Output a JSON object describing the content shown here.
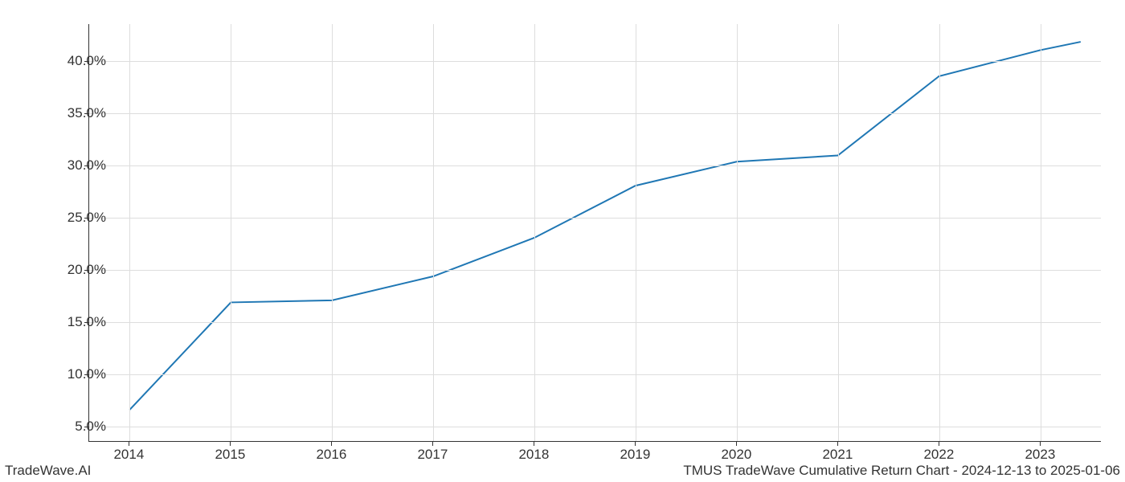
{
  "chart": {
    "type": "line",
    "x_values": [
      2014,
      2015,
      2016,
      2017,
      2018,
      2019,
      2020,
      2021,
      2022,
      2023,
      2023.4
    ],
    "y_values": [
      6.5,
      16.8,
      17.0,
      19.3,
      23.0,
      28.0,
      30.3,
      30.9,
      38.5,
      41.0,
      41.8
    ],
    "xlim": [
      2013.6,
      2023.6
    ],
    "ylim": [
      3.5,
      43.5
    ],
    "x_ticks": [
      2014,
      2015,
      2016,
      2017,
      2018,
      2019,
      2020,
      2021,
      2022,
      2023
    ],
    "x_tick_labels": [
      "2014",
      "2015",
      "2016",
      "2017",
      "2018",
      "2019",
      "2020",
      "2021",
      "2022",
      "2023"
    ],
    "y_ticks": [
      5,
      10,
      15,
      20,
      25,
      30,
      35,
      40
    ],
    "y_tick_labels": [
      "5.0%",
      "10.0%",
      "15.0%",
      "20.0%",
      "25.0%",
      "30.0%",
      "35.0%",
      "40.0%"
    ],
    "line_color": "#1f77b4",
    "line_width": 2,
    "grid_color": "#dddddd",
    "background_color": "#ffffff",
    "axis_color": "#333333",
    "tick_fontsize": 17,
    "footer_fontsize": 17
  },
  "footer": {
    "left": "TradeWave.AI",
    "right": "TMUS TradeWave Cumulative Return Chart - 2024-12-13 to 2025-01-06"
  }
}
